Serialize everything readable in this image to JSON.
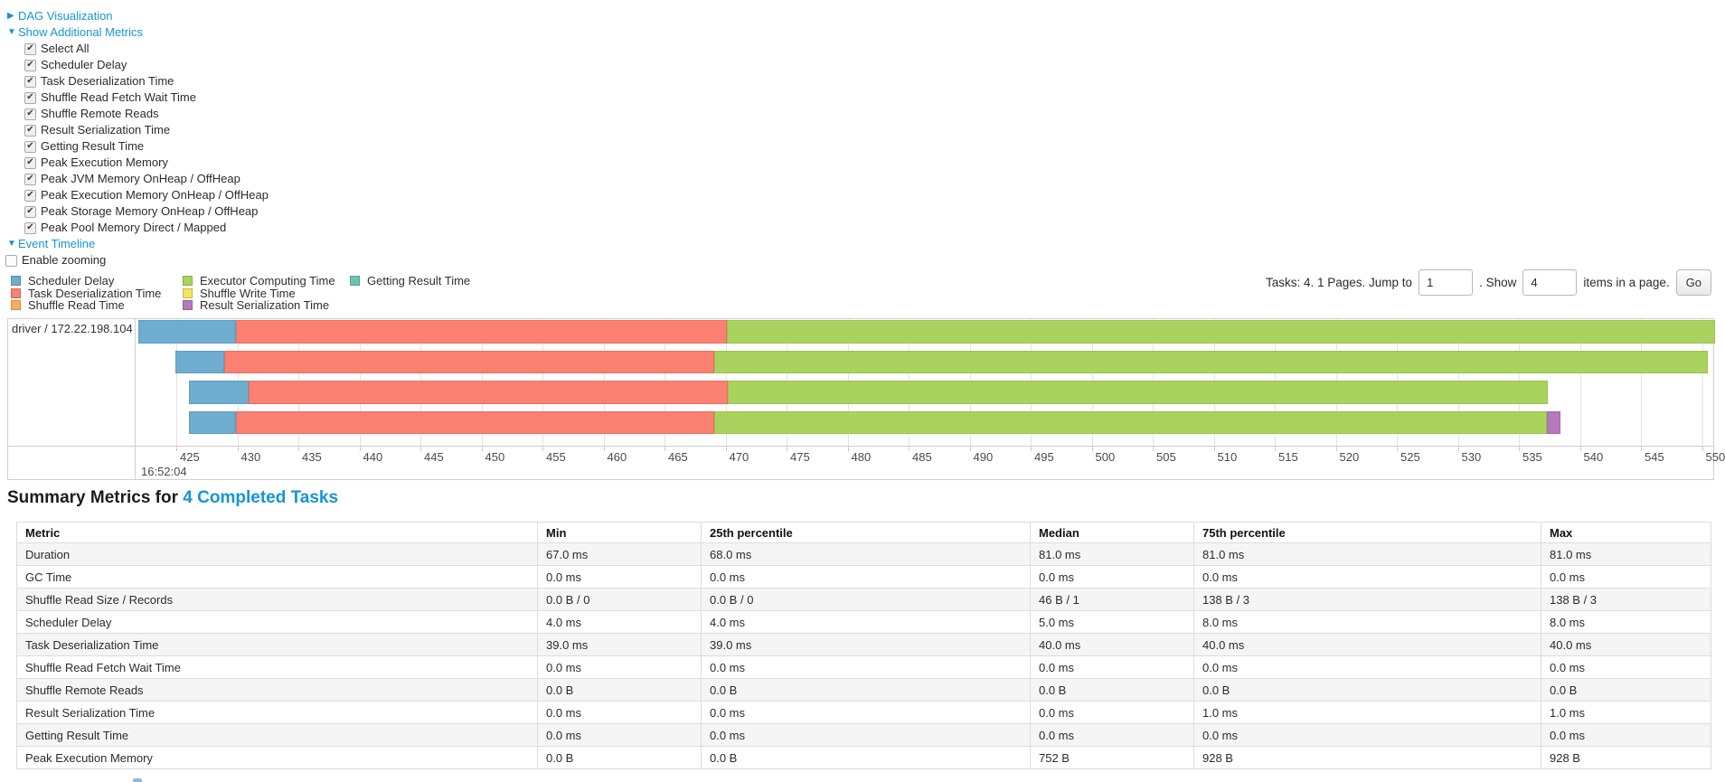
{
  "toggles": {
    "dag": {
      "arrow": "▶",
      "label": "DAG Visualization"
    },
    "metrics": {
      "arrow": "▼",
      "label": "Show Additional Metrics"
    },
    "timeline": {
      "arrow": "▼",
      "label": "Event Timeline"
    }
  },
  "metrics_panel": {
    "checkboxes": [
      {
        "id": "select-all",
        "label": "Select All",
        "checked": true
      },
      {
        "id": "scheduler-delay",
        "label": "Scheduler Delay",
        "checked": true
      },
      {
        "id": "task-deserialization-time",
        "label": "Task Deserialization Time",
        "checked": true
      },
      {
        "id": "shuffle-read-fetch-wait-time",
        "label": "Shuffle Read Fetch Wait Time",
        "checked": true
      },
      {
        "id": "shuffle-remote-reads",
        "label": "Shuffle Remote Reads",
        "checked": true
      },
      {
        "id": "result-serialization-time",
        "label": "Result Serialization Time",
        "checked": true
      },
      {
        "id": "getting-result-time",
        "label": "Getting Result Time",
        "checked": true
      },
      {
        "id": "peak-execution-memory",
        "label": "Peak Execution Memory",
        "checked": true
      },
      {
        "id": "peak-jvm-memory-onheap-offheap",
        "label": "Peak JVM Memory OnHeap / OffHeap",
        "checked": true
      },
      {
        "id": "peak-execution-memory-onheap-offheap",
        "label": "Peak Execution Memory OnHeap / OffHeap",
        "checked": true
      },
      {
        "id": "peak-storage-memory-onheap-offheap",
        "label": "Peak Storage Memory OnHeap / OffHeap",
        "checked": true
      },
      {
        "id": "peak-pool-memory-direct-mapped",
        "label": "Peak Pool Memory Direct / Mapped",
        "checked": true
      }
    ]
  },
  "enable_zooming": {
    "label": "Enable zooming",
    "checked": false
  },
  "legend": {
    "columns": [
      [
        {
          "type": "scheduler_delay",
          "label": "Scheduler Delay"
        },
        {
          "type": "task_deserialization",
          "label": "Task Deserialization Time"
        },
        {
          "type": "shuffle_read",
          "label": "Shuffle Read Time"
        }
      ],
      [
        {
          "type": "executor_computing",
          "label": "Executor Computing Time"
        },
        {
          "type": "shuffle_write",
          "label": "Shuffle Write Time"
        },
        {
          "type": "result_serialization",
          "label": "Result Serialization Time"
        }
      ],
      [
        {
          "type": "getting_result",
          "label": "Getting Result Time"
        }
      ]
    ]
  },
  "pagination": {
    "tasks_text": "Tasks: 4. 1 Pages. Jump to",
    "jump_value": "1",
    "show_text": ". Show",
    "show_value": "4",
    "items_text": "items in a page.",
    "go_label": "Go"
  },
  "chart_data": {
    "type": "timeline",
    "group_label": "driver / 172.22.198.104",
    "axis": {
      "major_label": "16:52:04",
      "tick_start_ms": 425,
      "tick_step_ms": 5,
      "ticks": [
        "425",
        "430",
        "435",
        "440",
        "445",
        "450",
        "455",
        "460",
        "465",
        "470",
        "475",
        "480",
        "485",
        "490",
        "495",
        "500",
        "505",
        "510",
        "515",
        "520",
        "525",
        "530",
        "535",
        "540",
        "545",
        "550"
      ]
    },
    "colors": {
      "scheduler_delay": {
        "fill": "#6EADD0",
        "border": "#5E9DC2"
      },
      "task_deserialization": {
        "fill": "#FA8072",
        "border": "#E86F62"
      },
      "shuffle_read": {
        "fill": "#FAAE5B",
        "border": "#E89C49"
      },
      "executor_computing": {
        "fill": "#A9D35E",
        "border": "#97C24D"
      },
      "shuffle_write": {
        "fill": "#F2E25D",
        "border": "#E0D04C"
      },
      "result_serialization": {
        "fill": "#B679B9",
        "border": "#A568A8"
      },
      "getting_result": {
        "fill": "#6CC5B0",
        "border": "#5BB49F"
      }
    },
    "tasks": [
      {
        "segments": [
          {
            "type": "scheduler_delay",
            "start": 421.9,
            "end": 429.9
          },
          {
            "type": "task_deserialization",
            "start": 429.9,
            "end": 470.1
          },
          {
            "type": "executor_computing",
            "start": 470.1,
            "end": 551.1
          }
        ]
      },
      {
        "segments": [
          {
            "type": "scheduler_delay",
            "start": 424.9,
            "end": 428.9
          },
          {
            "type": "task_deserialization",
            "start": 428.9,
            "end": 469.1
          },
          {
            "type": "executor_computing",
            "start": 469.1,
            "end": 550.5
          }
        ]
      },
      {
        "segments": [
          {
            "type": "scheduler_delay",
            "start": 426.0,
            "end": 430.9
          },
          {
            "type": "task_deserialization",
            "start": 430.9,
            "end": 470.2
          },
          {
            "type": "executor_computing",
            "start": 470.2,
            "end": 537.4
          }
        ]
      },
      {
        "segments": [
          {
            "type": "scheduler_delay",
            "start": 426.0,
            "end": 429.9
          },
          {
            "type": "task_deserialization",
            "start": 429.9,
            "end": 469.1
          },
          {
            "type": "executor_computing",
            "start": 469.1,
            "end": 537.3
          },
          {
            "type": "result_serialization",
            "start": 537.3,
            "end": 538.4
          }
        ]
      }
    ]
  },
  "summary": {
    "title_prefix": "Summary Metrics for ",
    "title_count": "4 Completed Tasks",
    "table": {
      "headers": [
        "Metric",
        "Min",
        "25th percentile",
        "Median",
        "75th percentile",
        "Max"
      ],
      "rows": [
        {
          "metric": "Duration",
          "values": [
            "67.0 ms",
            "68.0 ms",
            "81.0 ms",
            "81.0 ms",
            "81.0 ms"
          ]
        },
        {
          "metric": "GC Time",
          "values": [
            "0.0 ms",
            "0.0 ms",
            "0.0 ms",
            "0.0 ms",
            "0.0 ms"
          ]
        },
        {
          "metric": "Shuffle Read Size / Records",
          "values": [
            "0.0 B / 0",
            "0.0 B / 0",
            "46 B / 1",
            "138 B / 3",
            "138 B / 3"
          ]
        },
        {
          "metric": "Scheduler Delay",
          "values": [
            "4.0 ms",
            "4.0 ms",
            "5.0 ms",
            "8.0 ms",
            "8.0 ms"
          ]
        },
        {
          "metric": "Task Deserialization Time",
          "values": [
            "39.0 ms",
            "39.0 ms",
            "40.0 ms",
            "40.0 ms",
            "40.0 ms"
          ]
        },
        {
          "metric": "Shuffle Read Fetch Wait Time",
          "values": [
            "0.0 ms",
            "0.0 ms",
            "0.0 ms",
            "0.0 ms",
            "0.0 ms"
          ]
        },
        {
          "metric": "Shuffle Remote Reads",
          "values": [
            "0.0 B",
            "0.0 B",
            "0.0 B",
            "0.0 B",
            "0.0 B"
          ]
        },
        {
          "metric": "Result Serialization Time",
          "values": [
            "0.0 ms",
            "0.0 ms",
            "0.0 ms",
            "1.0 ms",
            "1.0 ms"
          ]
        },
        {
          "metric": "Getting Result Time",
          "values": [
            "0.0 ms",
            "0.0 ms",
            "0.0 ms",
            "0.0 ms",
            "0.0 ms"
          ]
        },
        {
          "metric": "Peak Execution Memory",
          "values": [
            "0.0 B",
            "0.0 B",
            "752 B",
            "928 B",
            "928 B"
          ]
        }
      ]
    }
  }
}
